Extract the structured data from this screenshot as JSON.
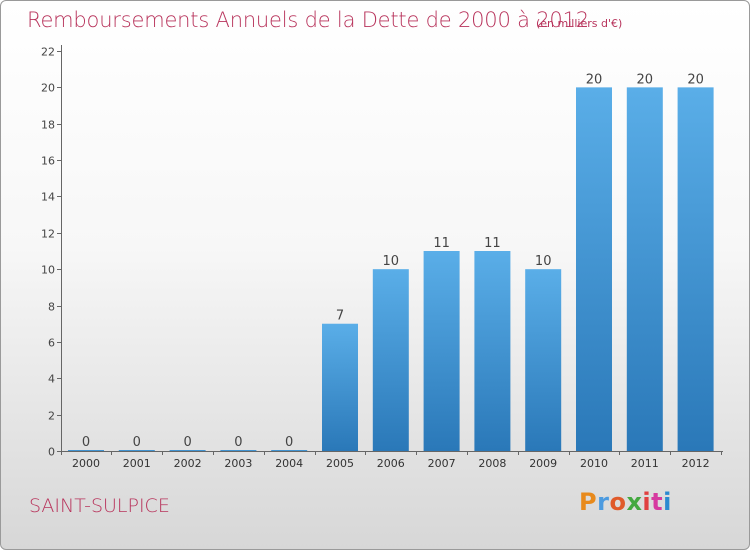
{
  "header": {
    "title": "Remboursements Annuels de la Dette de 2000 à 2012",
    "subtitle": "(en milliers d'€)"
  },
  "footer": {
    "commune": "SAINT-SULPICE",
    "logo": "Proxiti"
  },
  "colors": {
    "accent_text": "#b8345c",
    "bar_top": "#5aaee8",
    "bar_bottom": "#2a78b8"
  },
  "chart_data": {
    "type": "bar",
    "categories": [
      "2000",
      "2001",
      "2002",
      "2003",
      "2004",
      "2005",
      "2006",
      "2007",
      "2008",
      "2009",
      "2010",
      "2011",
      "2012"
    ],
    "values": [
      0,
      0,
      0,
      0,
      0,
      7,
      10,
      11,
      11,
      10,
      20,
      20,
      20
    ],
    "title": "Remboursements Annuels de la Dette de 2000 à 2012",
    "subtitle": "(en milliers d'€)",
    "ylim": [
      0,
      22
    ],
    "yticks": [
      0,
      2,
      4,
      6,
      8,
      10,
      12,
      14,
      16,
      18,
      20,
      22
    ],
    "grid": false,
    "legend": "none"
  }
}
